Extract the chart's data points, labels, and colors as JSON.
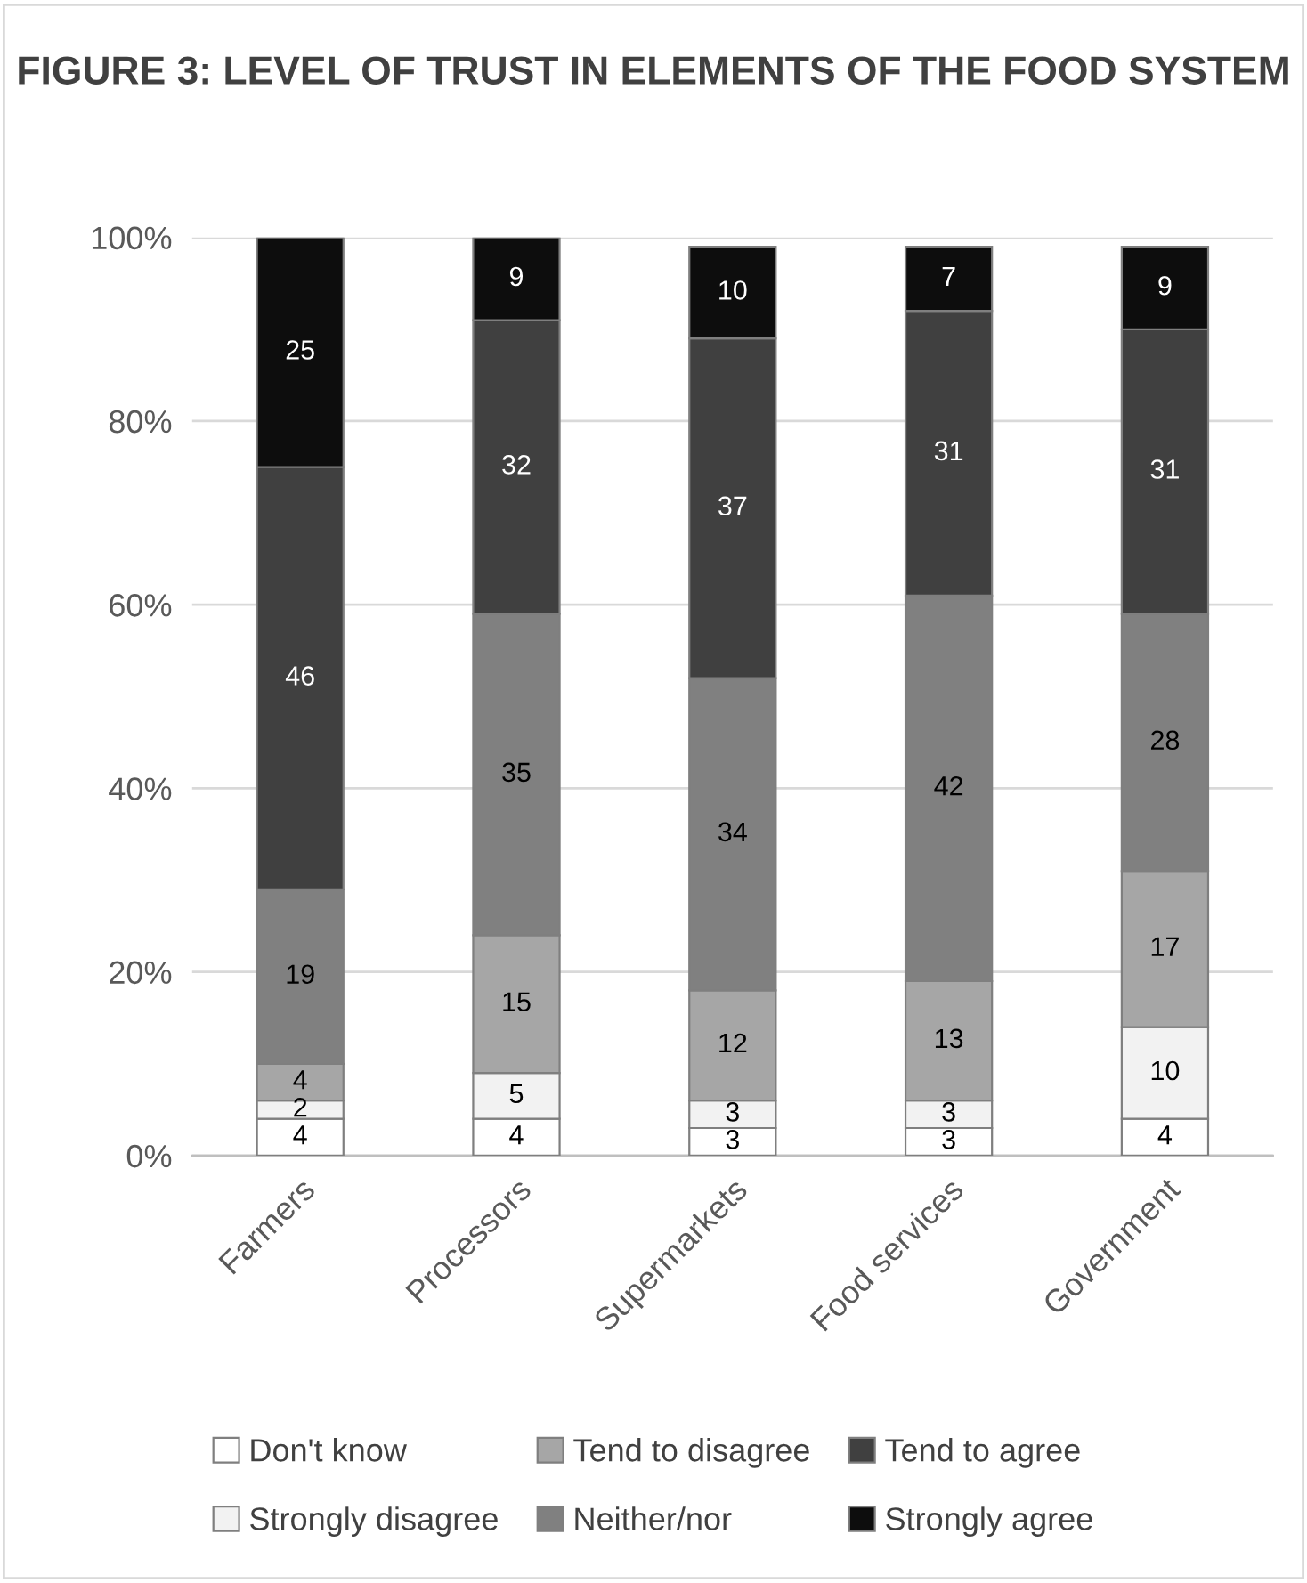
{
  "chart_data": {
    "type": "bar",
    "title": "FIGURE 3: LEVEL OF TRUST IN ELEMENTS OF THE FOOD SYSTEM",
    "stacked": true,
    "categories": [
      "Farmers",
      "Processors",
      "Supermarkets",
      "Food services",
      "Government"
    ],
    "series": [
      {
        "name": "Don't know",
        "color": "#ffffff",
        "values": [
          4,
          4,
          3,
          3,
          4
        ]
      },
      {
        "name": "Strongly disagree",
        "color": "#f2f2f2",
        "values": [
          2,
          5,
          3,
          3,
          10
        ]
      },
      {
        "name": "Tend to disagree",
        "color": "#a6a6a6",
        "values": [
          4,
          15,
          12,
          13,
          17
        ]
      },
      {
        "name": "Neither/nor",
        "color": "#808080",
        "values": [
          19,
          35,
          34,
          42,
          28
        ]
      },
      {
        "name": "Tend to agree",
        "color": "#404040",
        "values": [
          46,
          32,
          37,
          31,
          31
        ]
      },
      {
        "name": "Strongly agree",
        "color": "#0d0d0d",
        "values": [
          25,
          9,
          10,
          7,
          9
        ]
      }
    ],
    "ylim": [
      0,
      100
    ],
    "yticks": [
      {
        "value": 0,
        "label": "0%"
      },
      {
        "value": 20,
        "label": "20%"
      },
      {
        "value": 40,
        "label": "40%"
      },
      {
        "value": 60,
        "label": "60%"
      },
      {
        "value": 80,
        "label": "80%"
      },
      {
        "value": 100,
        "label": "100%"
      }
    ],
    "grid": "y",
    "legend": "bottom",
    "data_labels": true
  }
}
